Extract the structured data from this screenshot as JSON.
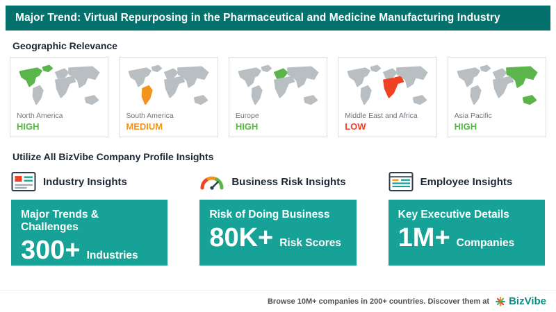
{
  "colors": {
    "banner_bg": "#05716c",
    "box_teal": "#16a296",
    "high_green": "#5bb54a",
    "medium_orange": "#f0941f",
    "low_red": "#ef4123",
    "map_gray": "#b9bec2",
    "brand_teal": "#0b8d84"
  },
  "header": {
    "title": "Major Trend: Virtual Repurposing in the Pharmaceutical and Medicine Manufacturing Industry"
  },
  "geo": {
    "heading": "Geographic Relevance",
    "regions": [
      {
        "name": "North America",
        "level": "HIGH",
        "color": "#5bb54a",
        "map_highlight": "na"
      },
      {
        "name": "South America",
        "level": "MEDIUM",
        "color": "#f0941f",
        "map_highlight": "sa"
      },
      {
        "name": "Europe",
        "level": "HIGH",
        "color": "#5bb54a",
        "map_highlight": "eu"
      },
      {
        "name": "Middle East and Africa",
        "level": "LOW",
        "color": "#ef4123",
        "map_highlight": "mea"
      },
      {
        "name": "Asia Pacific",
        "level": "HIGH",
        "color": "#5bb54a",
        "map_highlight": "apac"
      }
    ]
  },
  "insights": {
    "heading": "Utilize All BizVibe Company Profile Insights",
    "items": [
      {
        "icon": "industry-insights-icon",
        "title": "Industry Insights",
        "line1": "Major Trends & Challenges",
        "big": "300+",
        "unit": "Industries"
      },
      {
        "icon": "risk-gauge-icon",
        "title": "Business Risk Insights",
        "line1": "Risk of Doing Business",
        "big": "80K+",
        "unit": "Risk Scores"
      },
      {
        "icon": "employee-insights-icon",
        "title": "Employee Insights",
        "line1": "Key Executive Details",
        "big": "1M+",
        "unit": "Companies"
      }
    ]
  },
  "footer": {
    "text": "Browse 10M+ companies in 200+ countries. Discover them at",
    "brand": "BizVibe"
  }
}
